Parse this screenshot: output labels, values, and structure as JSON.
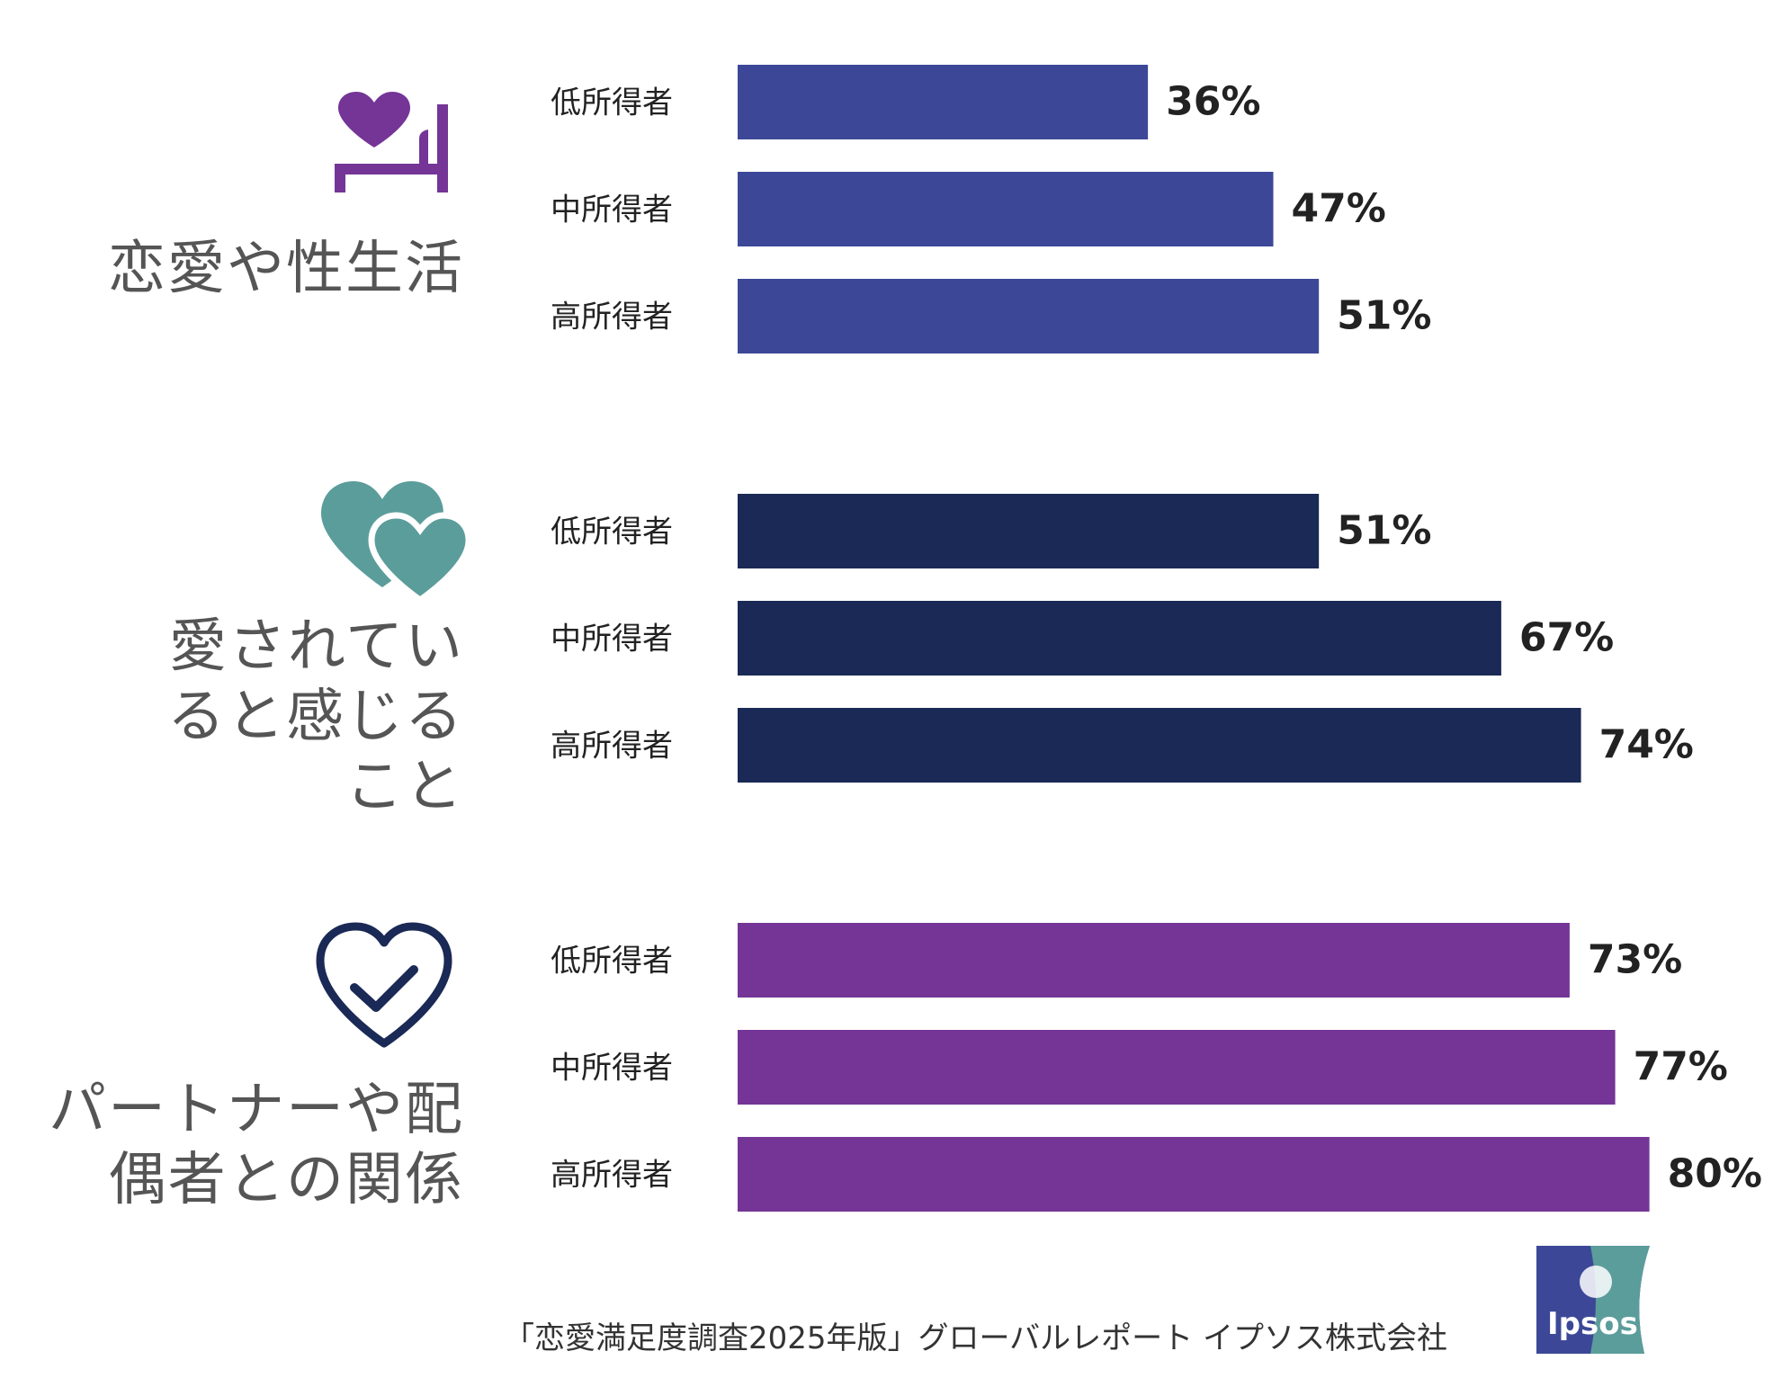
{
  "chart_data": {
    "type": "bar",
    "orientation": "horizontal",
    "xlim": [
      0,
      100
    ],
    "value_suffix": "%",
    "groups": [
      {
        "name": "恋愛や性生活",
        "color": "#3c4897",
        "categories": [
          "低所得者",
          "中所得者",
          "高所得者"
        ],
        "values": [
          36,
          47,
          51
        ]
      },
      {
        "name": "愛されていると感じること",
        "color": "#1a2955",
        "categories": [
          "低所得者",
          "中所得者",
          "高所得者"
        ],
        "values": [
          51,
          67,
          74
        ]
      },
      {
        "name": "パートナーや配偶者との関係",
        "color": "#743596",
        "categories": [
          "低所得者",
          "中所得者",
          "高所得者"
        ],
        "values": [
          73,
          77,
          80
        ]
      }
    ]
  },
  "labels": {
    "group1": "恋愛や性生活",
    "group2_line1": "愛されてい",
    "group2_line2": "ると感じる",
    "group2_line3": "こと",
    "group3_line1": "パートナーや配",
    "group3_line2": "偶者との関係"
  },
  "icons": {
    "group1": "bed-heart-icon",
    "group2": "two-hearts-icon",
    "group3": "heart-check-icon"
  },
  "colors": {
    "icon_purple": "#743596",
    "icon_teal": "#5b9d9b",
    "icon_navy": "#1a2955",
    "logo_blue": "#3c4897",
    "logo_teal": "#5b9d9b"
  },
  "footer": {
    "source": "「恋愛満足度調査2025年版」グローバルレポート イプソス株式会社"
  },
  "logo": {
    "text": "Ipsos"
  }
}
